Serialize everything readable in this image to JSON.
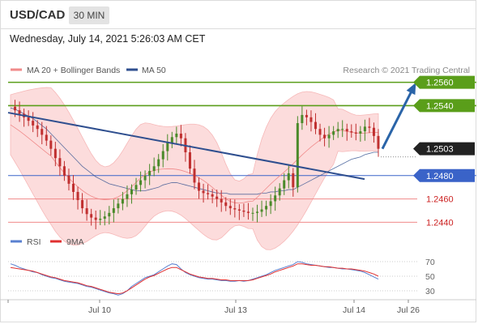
{
  "header": {
    "symbol": "USD/CAD",
    "timeframe": "30 MIN"
  },
  "datetime": "Wednesday, July 14, 2021 5:26:03 AM CET",
  "legend": {
    "items": [
      {
        "label": "MA 20 + Bollinger Bands",
        "color": "#f08a8a"
      },
      {
        "label": "MA 50",
        "color": "#2f4f8f"
      }
    ],
    "credit": "Research © 2021 Trading Central"
  },
  "colors": {
    "resistance": "#5a9e1a",
    "support": "#f08a8a",
    "pivot": "#3a63c8",
    "candle_up": "#4a8a2a",
    "candle_down": "#c03030",
    "band_fill": "#fcdcdc",
    "trendline": "#2f4f8f",
    "arrow": "#2a64a8",
    "current": "#222222",
    "rsi": "#5a80d0",
    "rsi_ma": "#e03030"
  },
  "chart_data": [
    {
      "type": "candlestick",
      "title": "USD/CAD 30 MIN",
      "ylim": [
        1.2434,
        1.2566
      ],
      "x_ticks": [
        "Jul 10",
        "Jul 13",
        "Jul 14",
        "Jul 26"
      ],
      "price_levels": [
        {
          "value": 1.256,
          "label": "1.2560",
          "kind": "resistance"
        },
        {
          "value": 1.254,
          "label": "1.2540",
          "kind": "resistance"
        },
        {
          "value": 1.2503,
          "label": "1.2503",
          "kind": "current"
        },
        {
          "value": 1.248,
          "label": "1.2480",
          "kind": "pivot"
        },
        {
          "value": 1.246,
          "label": "1.2460",
          "kind": "support"
        },
        {
          "value": 1.244,
          "label": "1.2440",
          "kind": "support"
        }
      ],
      "close_series": [
        1.2539,
        1.2536,
        1.2533,
        1.253,
        1.2527,
        1.2523,
        1.252,
        1.2515,
        1.251,
        1.2503,
        1.2495,
        1.2488,
        1.248,
        1.2473,
        1.2466,
        1.2459,
        1.2452,
        1.2447,
        1.2444,
        1.2442,
        1.2443,
        1.2445,
        1.2448,
        1.2452,
        1.2456,
        1.246,
        1.2464,
        1.2468,
        1.2472,
        1.2476,
        1.248,
        1.2484,
        1.2488,
        1.2494,
        1.2501,
        1.2508,
        1.2513,
        1.2516,
        1.2512,
        1.25,
        1.2486,
        1.2474,
        1.2467,
        1.2465,
        1.2464,
        1.2462,
        1.246,
        1.2457,
        1.2454,
        1.2452,
        1.2451,
        1.245,
        1.2449,
        1.2448,
        1.2448,
        1.2449,
        1.2451,
        1.2454,
        1.2458,
        1.2463,
        1.2469,
        1.2476,
        1.2482,
        1.247,
        1.2525,
        1.2532,
        1.253,
        1.2526,
        1.252,
        1.2515,
        1.2512,
        1.2515,
        1.2518,
        1.252,
        1.252,
        1.2518,
        1.2517,
        1.2516,
        1.2518,
        1.2522,
        1.2521,
        1.2514,
        1.2503
      ],
      "ma50_series": [
        1.2538,
        1.2537,
        1.2535,
        1.2533,
        1.2531,
        1.2529,
        1.2526,
        1.2523,
        1.252,
        1.2516,
        1.2512,
        1.2508,
        1.2504,
        1.25,
        1.2496,
        1.2492,
        1.2488,
        1.2485,
        1.2482,
        1.2479,
        1.2477,
        1.2475,
        1.2473,
        1.2472,
        1.2471,
        1.247,
        1.2469,
        1.2468,
        1.2467,
        1.2467,
        1.2467,
        1.2468,
        1.2469,
        1.247,
        1.2472,
        1.2473,
        1.2474,
        1.2474,
        1.2473,
        1.2472,
        1.2471,
        1.247,
        1.2469,
        1.2468,
        1.2467,
        1.2466,
        1.2465,
        1.2465,
        1.2465,
        1.2464,
        1.2464,
        1.2464,
        1.2464,
        1.2464,
        1.2464,
        1.2464,
        1.2465,
        1.2465,
        1.2466,
        1.2466,
        1.2467,
        1.2467,
        1.2468,
        1.2468,
        1.247,
        1.2472,
        1.2474,
        1.2476,
        1.2478,
        1.248,
        1.2482,
        1.2484,
        1.2486,
        1.2488,
        1.249,
        1.2492,
        1.2494,
        1.2495,
        1.2496,
        1.2498,
        1.2499,
        1.25,
        1.25
      ],
      "trendline": {
        "from": 1.2534,
        "to": 1.2477
      },
      "projection": {
        "from": 1.2503,
        "to": 1.256
      }
    },
    {
      "type": "line",
      "title": "RSI",
      "series": [
        {
          "name": "RSI",
          "color": "#5a80d0",
          "values": [
            67,
            65,
            62,
            60,
            58,
            56,
            55,
            52,
            50,
            48,
            47,
            45,
            43,
            42,
            41,
            40,
            38,
            36,
            35,
            33,
            31,
            29,
            27,
            26,
            24,
            26,
            30,
            36,
            40,
            44,
            48,
            50,
            52,
            56,
            60,
            64,
            67,
            66,
            60,
            55,
            52,
            50,
            48,
            47,
            46,
            46,
            45,
            44,
            44,
            43,
            43,
            44,
            43,
            44,
            46,
            48,
            50,
            52,
            55,
            58,
            60,
            62,
            64,
            66,
            70,
            69,
            67,
            66,
            65,
            64,
            63,
            62,
            62,
            61,
            60,
            60,
            59,
            58,
            57,
            55,
            52,
            49,
            46
          ]
        },
        {
          "name": "9MA",
          "color": "#e03030",
          "values": [
            62,
            61,
            60,
            59,
            58,
            57,
            55,
            53,
            51,
            49,
            48,
            46,
            44,
            43,
            42,
            41,
            39,
            37,
            36,
            34,
            32,
            30,
            28,
            27,
            26,
            27,
            30,
            34,
            38,
            42,
            46,
            49,
            51,
            54,
            57,
            60,
            62,
            62,
            59,
            56,
            53,
            51,
            49,
            48,
            47,
            47,
            46,
            45,
            45,
            44,
            44,
            44,
            44,
            44,
            45,
            47,
            49,
            51,
            53,
            56,
            58,
            60,
            62,
            64,
            67,
            67,
            66,
            65,
            65,
            64,
            63,
            63,
            62,
            61,
            61,
            60,
            60,
            59,
            58,
            57,
            55,
            53,
            50
          ]
        }
      ],
      "y_ticks": [
        70,
        50,
        30
      ],
      "ylim": [
        20,
        80
      ]
    }
  ]
}
